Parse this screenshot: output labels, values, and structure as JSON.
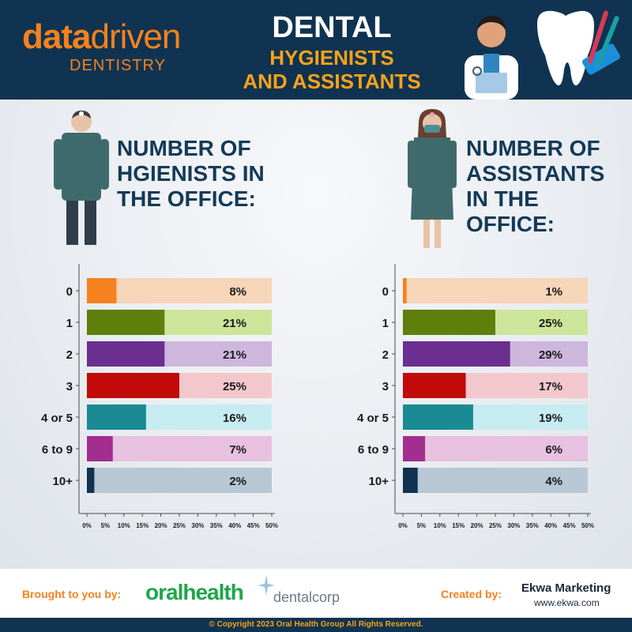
{
  "header": {
    "logo_data": "data",
    "logo_driven": "driven",
    "logo_sub": "DENTISTRY",
    "title_main": "DENTAL",
    "title_sub1": "HYGIENISTS",
    "title_sub2": "AND ASSISTANTS"
  },
  "left_heading": [
    "NUMBER OF",
    "HGIENISTS IN",
    "THE OFFICE:"
  ],
  "right_heading": [
    "NUMBER OF",
    "ASSISTANTS",
    "IN THE OFFICE:"
  ],
  "colors": {
    "bar_fill": [
      "#f5821f",
      "#5e7f0c",
      "#6a2f91",
      "#c10a0a",
      "#1a8a93",
      "#a32d8f",
      "#0f3350"
    ],
    "bar_track": [
      "#f6d5b8",
      "#cde59a",
      "#cdb7dc",
      "#f3c8cc",
      "#c6ecf1",
      "#e8c0e0",
      "#b7c7d3"
    ]
  },
  "chart_data": [
    {
      "type": "bar",
      "orientation": "horizontal",
      "categories": [
        "0",
        "1",
        "2",
        "3",
        "4 or 5",
        "6 to 9",
        "10+"
      ],
      "values": [
        8,
        21,
        21,
        25,
        16,
        7,
        2
      ],
      "value_labels": [
        "8%",
        "21%",
        "21%",
        "25%",
        "16%",
        "7%",
        "2%"
      ],
      "xlim": [
        0,
        50
      ],
      "xticks": [
        "0%",
        "5%",
        "10%",
        "15%",
        "20%",
        "25%",
        "30%",
        "35%",
        "40%",
        "45%",
        "50%"
      ]
    },
    {
      "type": "bar",
      "orientation": "horizontal",
      "categories": [
        "0",
        "1",
        "2",
        "3",
        "4 or 5",
        "6 to 9",
        "10+"
      ],
      "values": [
        1,
        25,
        29,
        17,
        19,
        6,
        4
      ],
      "value_labels": [
        "1%",
        "25%",
        "29%",
        "17%",
        "19%",
        "6%",
        "4%"
      ],
      "xlim": [
        0,
        50
      ],
      "xticks": [
        "0%",
        "5%",
        "10%",
        "15%",
        "20%",
        "25%",
        "30%",
        "35%",
        "40%",
        "45%",
        "50%"
      ]
    }
  ],
  "footer": {
    "brought_by": "Brought to you by:",
    "oralhealth": "oralhealth",
    "dentalcorp": "dentalcorp",
    "created_by": "Created by:",
    "ekwa": "Ekwa Marketing",
    "ekwa_url": "www.ekwa.com",
    "copyright": "© Copyright 2023 Oral Health Group All Rights Reserved."
  }
}
